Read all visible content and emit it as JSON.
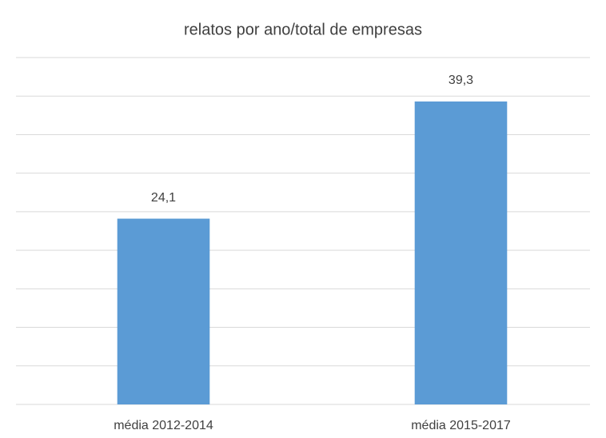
{
  "chart_data": {
    "type": "bar",
    "title": "relatos por ano/total de empresas",
    "categories": [
      "média 2012-2014",
      "média 2015-2017"
    ],
    "values": [
      24.1,
      39.3
    ],
    "value_labels": [
      "24,1",
      "39,3"
    ],
    "color": "#5b9bd5",
    "ylim": [
      0,
      45
    ],
    "yticks": [
      0,
      5,
      10,
      15,
      20,
      25,
      30,
      35,
      40,
      45
    ],
    "grid": true
  }
}
